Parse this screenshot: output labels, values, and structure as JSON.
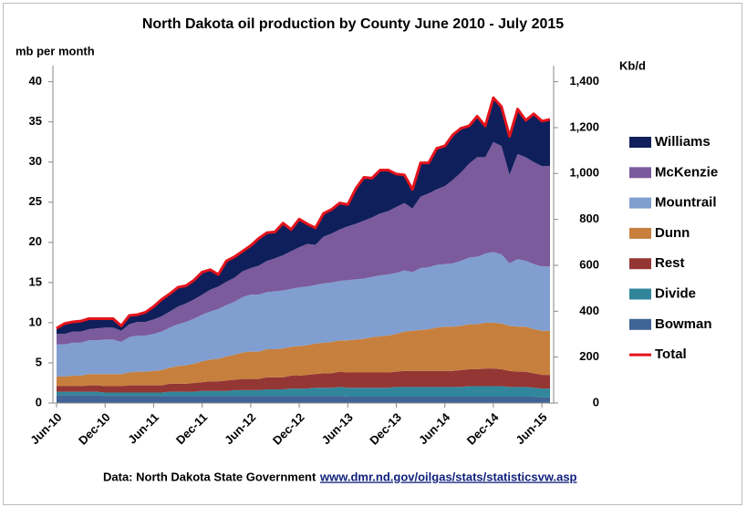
{
  "chart_data": {
    "type": "stacked-area",
    "title": "North Dakota oil production by County June 2010 - July 2015",
    "y_label": "mb per month",
    "y2_label": "Kb/d",
    "source": "Data: North Dakota State Government",
    "source_link": "www.dmr.nd.gov/oilgas/stats/statisticsvw.asp",
    "categories": [
      "Jun-10",
      null,
      null,
      null,
      null,
      null,
      "Dec-10",
      null,
      null,
      null,
      null,
      null,
      "Jun-11",
      null,
      null,
      null,
      null,
      null,
      "Dec-11",
      null,
      null,
      null,
      null,
      null,
      "Jun-12",
      null,
      null,
      null,
      null,
      null,
      "Dec-12",
      null,
      null,
      null,
      null,
      null,
      "Jun-13",
      null,
      null,
      null,
      null,
      null,
      "Dec-13",
      null,
      null,
      null,
      null,
      null,
      "Jun-14",
      null,
      null,
      null,
      null,
      null,
      "Dec-14",
      null,
      null,
      null,
      null,
      null,
      "Jun-15",
      null
    ],
    "ylim": [
      0,
      42
    ],
    "yticks": [
      0,
      5,
      10,
      15,
      20,
      25,
      30,
      35,
      40
    ],
    "y2lim": [
      0,
      1470
    ],
    "y2ticks": [
      0,
      200,
      400,
      600,
      800,
      {
        "value": 1000,
        "label": "1,000"
      },
      {
        "value": 1200,
        "label": "1,200"
      },
      {
        "value": 1400,
        "label": "1,400"
      }
    ],
    "legend": "right",
    "series": [
      {
        "name": "Williams",
        "color": "#0f1f5b",
        "values": [
          0.7,
          1.3,
          1.2,
          1.3,
          1.3,
          1.2,
          1.1,
          1.1,
          0.6,
          1.1,
          0.9,
          1.2,
          1.6,
          2.1,
          2.3,
          2.4,
          2.2,
          2.4,
          2.8,
          2.5,
          1.5,
          2.6,
          2.6,
          2.5,
          2.8,
          3.4,
          3.5,
          3.3,
          4.0,
          2.7,
          3.5,
          2.5,
          2.1,
          2.9,
          3.0,
          3.3,
          2.7,
          4.4,
          5.4,
          4.8,
          5.4,
          5.1,
          4.1,
          3.4,
          2.4,
          4.2,
          3.7,
          5.1,
          5.0,
          5.6,
          5.5,
          4.7,
          5.1,
          3.9,
          5.5,
          4.9,
          4.8,
          5.6,
          4.6,
          6.0,
          5.6,
          5.8
        ]
      },
      {
        "name": "McKenzie",
        "color": "#7b5b9c",
        "values": [
          1.3,
          1.3,
          1.4,
          1.4,
          1.4,
          1.5,
          1.5,
          1.5,
          1.4,
          1.6,
          1.7,
          1.7,
          1.8,
          1.9,
          2.0,
          2.2,
          2.3,
          2.4,
          2.5,
          2.7,
          2.8,
          2.9,
          3.0,
          3.2,
          3.3,
          3.6,
          3.9,
          4.1,
          4.4,
          4.7,
          5.0,
          5.3,
          5.0,
          5.8,
          6.1,
          6.4,
          6.7,
          6.9,
          7.2,
          7.4,
          7.7,
          7.9,
          8.2,
          8.4,
          7.9,
          8.9,
          9.2,
          9.4,
          9.7,
          10.4,
          11.0,
          11.7,
          12.4,
          12.0,
          13.7,
          13.5,
          11.0,
          13.1,
          12.9,
          12.7,
          12.5,
          12.5
        ]
      },
      {
        "name": "Mountrail",
        "color": "#809fd0",
        "values": [
          4.0,
          4.0,
          4.1,
          4.1,
          4.2,
          4.2,
          4.3,
          4.3,
          4.0,
          4.4,
          4.5,
          4.5,
          4.6,
          4.8,
          5.0,
          5.2,
          5.4,
          5.6,
          5.8,
          6.0,
          6.2,
          6.4,
          6.6,
          6.9,
          7.1,
          7.1,
          7.1,
          7.2,
          7.2,
          7.2,
          7.3,
          7.3,
          7.3,
          7.4,
          7.4,
          7.4,
          7.5,
          7.5,
          7.5,
          7.5,
          7.6,
          7.6,
          7.6,
          7.6,
          7.3,
          7.7,
          7.7,
          7.8,
          7.8,
          7.9,
          8.1,
          8.3,
          8.4,
          8.6,
          8.8,
          8.6,
          7.8,
          8.4,
          8.2,
          8.1,
          8.0,
          8.0
        ]
      },
      {
        "name": "Dunn",
        "color": "#c77f3e",
        "values": [
          1.2,
          1.2,
          1.3,
          1.3,
          1.4,
          1.4,
          1.5,
          1.5,
          1.5,
          1.6,
          1.7,
          1.7,
          1.8,
          1.9,
          2.0,
          2.2,
          2.3,
          2.4,
          2.6,
          2.7,
          2.8,
          3.0,
          3.1,
          3.3,
          3.4,
          3.4,
          3.5,
          3.5,
          3.6,
          3.6,
          3.7,
          3.7,
          3.8,
          3.8,
          3.9,
          3.9,
          4.0,
          4.1,
          4.2,
          4.4,
          4.5,
          4.6,
          4.7,
          4.9,
          5.0,
          5.1,
          5.2,
          5.4,
          5.5,
          5.5,
          5.5,
          5.6,
          5.6,
          5.7,
          5.7,
          5.7,
          5.6,
          5.6,
          5.6,
          5.5,
          5.5,
          5.5
        ]
      },
      {
        "name": "Rest",
        "color": "#943634",
        "values": [
          0.7,
          0.7,
          0.7,
          0.7,
          0.8,
          0.8,
          0.8,
          0.8,
          0.8,
          0.9,
          0.9,
          0.9,
          0.9,
          0.9,
          1.0,
          1.0,
          1.0,
          1.1,
          1.1,
          1.2,
          1.2,
          1.3,
          1.3,
          1.4,
          1.4,
          1.4,
          1.5,
          1.5,
          1.5,
          1.6,
          1.6,
          1.7,
          1.7,
          1.8,
          1.8,
          1.9,
          1.9,
          1.9,
          1.9,
          1.9,
          1.9,
          1.9,
          1.9,
          2.0,
          2.0,
          2.0,
          2.0,
          2.0,
          2.0,
          2.0,
          2.1,
          2.1,
          2.1,
          2.2,
          2.2,
          2.1,
          2.0,
          1.9,
          1.9,
          1.8,
          1.7,
          1.7
        ]
      },
      {
        "name": "Divide",
        "color": "#31869b",
        "values": [
          0.4,
          0.4,
          0.4,
          0.4,
          0.4,
          0.4,
          0.4,
          0.4,
          0.4,
          0.4,
          0.4,
          0.4,
          0.4,
          0.4,
          0.5,
          0.5,
          0.5,
          0.5,
          0.6,
          0.6,
          0.6,
          0.6,
          0.7,
          0.7,
          0.7,
          0.7,
          0.8,
          0.8,
          0.8,
          0.9,
          0.9,
          0.9,
          1.0,
          1.0,
          1.0,
          1.1,
          1.1,
          1.1,
          1.1,
          1.1,
          1.1,
          1.1,
          1.2,
          1.2,
          1.2,
          1.2,
          1.2,
          1.2,
          1.2,
          1.2,
          1.2,
          1.3,
          1.3,
          1.3,
          1.3,
          1.3,
          1.2,
          1.2,
          1.2,
          1.1,
          1.1,
          1.1
        ]
      },
      {
        "name": "Bowman",
        "color": "#3f6495",
        "values": [
          1.0,
          1.0,
          1.0,
          1.0,
          1.0,
          1.0,
          0.9,
          0.9,
          0.9,
          0.9,
          0.9,
          0.9,
          0.9,
          0.9,
          0.9,
          0.9,
          0.9,
          0.9,
          0.9,
          0.9,
          0.9,
          0.9,
          0.9,
          0.9,
          0.9,
          0.9,
          0.9,
          0.9,
          0.9,
          0.9,
          0.9,
          0.9,
          0.9,
          0.9,
          0.9,
          0.9,
          0.8,
          0.8,
          0.8,
          0.8,
          0.8,
          0.8,
          0.8,
          0.8,
          0.8,
          0.8,
          0.8,
          0.8,
          0.8,
          0.8,
          0.8,
          0.8,
          0.8,
          0.8,
          0.8,
          0.8,
          0.8,
          0.8,
          0.8,
          0.8,
          0.7,
          0.7
        ]
      },
      {
        "name": "Total",
        "color": "#e3141c",
        "line": true,
        "values": [
          9.3,
          9.9,
          10.1,
          10.2,
          10.5,
          10.5,
          10.5,
          10.5,
          9.6,
          10.9,
          11.0,
          11.3,
          12.0,
          12.9,
          13.6,
          14.4,
          14.6,
          15.3,
          16.3,
          16.6,
          16.0,
          17.7,
          18.2,
          18.9,
          19.6,
          20.5,
          21.2,
          21.3,
          22.4,
          21.6,
          22.9,
          22.3,
          21.8,
          23.6,
          24.1,
          24.9,
          24.7,
          26.7,
          28.1,
          28.0,
          29.0,
          29.0,
          28.5,
          28.4,
          26.6,
          29.9,
          29.9,
          31.7,
          32.0,
          33.4,
          34.2,
          34.5,
          35.7,
          34.5,
          38.0,
          36.9,
          33.2,
          36.6,
          35.2,
          36.0,
          35.1,
          35.3
        ]
      }
    ]
  }
}
